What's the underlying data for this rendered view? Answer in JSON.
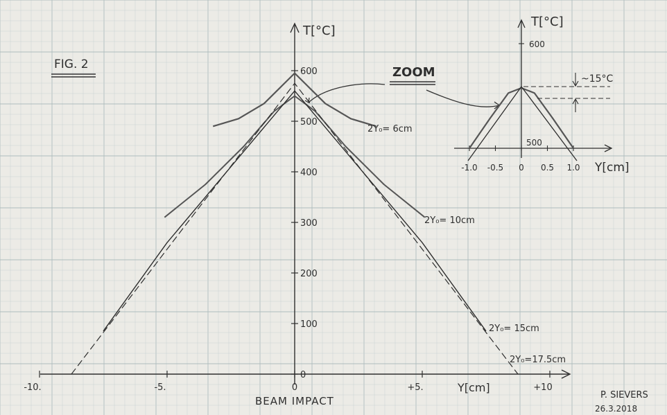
{
  "colors": {
    "paper": "#ecebe6",
    "grid_minor": "#c9d3d3",
    "grid_major": "#aebcbd",
    "ink": "#2e2e2e",
    "pencil": "#555555"
  },
  "page": {
    "fig_label": "FIG. 2",
    "zoom_label": "ZOOM",
    "beam_label": "BEAM IMPACT",
    "author": "P. SIEVERS",
    "date": "26.3.2018"
  },
  "chart_data": [
    {
      "type": "line",
      "title": "",
      "xlabel": "Y[cm]",
      "ylabel": "T[°C]",
      "xlim": [
        -11,
        11
      ],
      "ylim": [
        0,
        650
      ],
      "x_tick_labels": [
        "-10.",
        "-5.",
        "0",
        "+5.",
        "+10"
      ],
      "y_tick_labels": [
        "0",
        "100",
        "200",
        "300",
        "400",
        "500",
        "600"
      ],
      "series": [
        {
          "name": "2Y₀= 6cm",
          "x": [
            -3.2,
            -2.2,
            -1.2,
            -0.5,
            0,
            0.5,
            1.2,
            2.2,
            3.2
          ],
          "y": [
            490,
            505,
            535,
            570,
            595,
            570,
            535,
            505,
            490
          ]
        },
        {
          "name": "2Y₀= 10cm",
          "x": [
            -5.1,
            -3.5,
            -2,
            -0.8,
            0,
            0.8,
            2,
            3.5,
            5.1
          ],
          "y": [
            310,
            375,
            450,
            520,
            550,
            520,
            450,
            375,
            310
          ]
        },
        {
          "name": "2Y₀= 15cm",
          "x": [
            -7.5,
            -5,
            -2.5,
            0,
            2.5,
            5,
            7.5
          ],
          "y": [
            85,
            260,
            410,
            560,
            410,
            260,
            85
          ]
        },
        {
          "name": "2Y₀=17.5cm",
          "x": [
            -8.75,
            -4.5,
            0,
            4.5,
            8.75
          ],
          "y": [
            0,
            280,
            575,
            280,
            0
          ]
        }
      ]
    },
    {
      "type": "line",
      "title": "",
      "xlabel": "Y[cm]",
      "ylabel": "T[°C]",
      "xlim": [
        -1.3,
        1.3
      ],
      "ylim": [
        500,
        610
      ],
      "x_tick_labels": [
        "-1.0",
        "-0.5",
        "0",
        "0.5",
        "1.0"
      ],
      "y_tick_labels": [
        "500",
        "600"
      ],
      "annotation": "~15°C",
      "series": [
        {
          "name": "",
          "x": [
            -1.0,
            -0.6,
            -0.25,
            0,
            0.25,
            0.6,
            1.0
          ],
          "y": [
            500,
            530,
            555,
            560,
            555,
            530,
            500
          ]
        }
      ]
    }
  ]
}
